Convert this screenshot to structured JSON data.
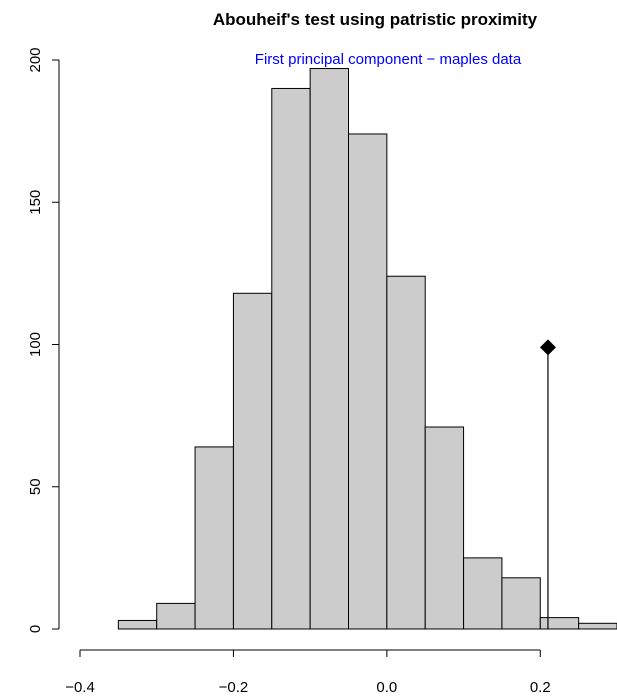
{
  "chart_data": {
    "type": "bar",
    "title": "Abouheif's test using patristic proximity",
    "subtitle": "First principal component − maples data",
    "subtitle_color": "#0000ff",
    "bar_color": "#cccccc",
    "xlabel": "",
    "ylabel": "",
    "xlim": [
      -0.4,
      0.3
    ],
    "ylim": [
      0,
      200
    ],
    "x_ticks": [
      -0.4,
      -0.2,
      0.0,
      0.2
    ],
    "x_tick_labels": [
      "−0.4",
      "−0.2",
      "0.0",
      "0.2"
    ],
    "y_ticks": [
      0,
      50,
      100,
      150,
      200
    ],
    "y_tick_labels": [
      "0",
      "50",
      "100",
      "150",
      "200"
    ],
    "bins": [
      {
        "start": -0.35,
        "end": -0.3,
        "count": 3
      },
      {
        "start": -0.3,
        "end": -0.25,
        "count": 9
      },
      {
        "start": -0.25,
        "end": -0.2,
        "count": 64
      },
      {
        "start": -0.2,
        "end": -0.15,
        "count": 118
      },
      {
        "start": -0.15,
        "end": -0.1,
        "count": 190
      },
      {
        "start": -0.1,
        "end": -0.05,
        "count": 197
      },
      {
        "start": -0.05,
        "end": 0.0,
        "count": 174
      },
      {
        "start": 0.0,
        "end": 0.05,
        "count": 124
      },
      {
        "start": 0.05,
        "end": 0.1,
        "count": 71
      },
      {
        "start": 0.1,
        "end": 0.15,
        "count": 25
      },
      {
        "start": 0.15,
        "end": 0.2,
        "count": 18
      },
      {
        "start": 0.2,
        "end": 0.25,
        "count": 4
      },
      {
        "start": 0.25,
        "end": 0.3,
        "count": 2
      }
    ],
    "observed": {
      "x": 0.21,
      "y": 99,
      "marker": "diamond"
    },
    "grid": false,
    "legend": "none"
  }
}
